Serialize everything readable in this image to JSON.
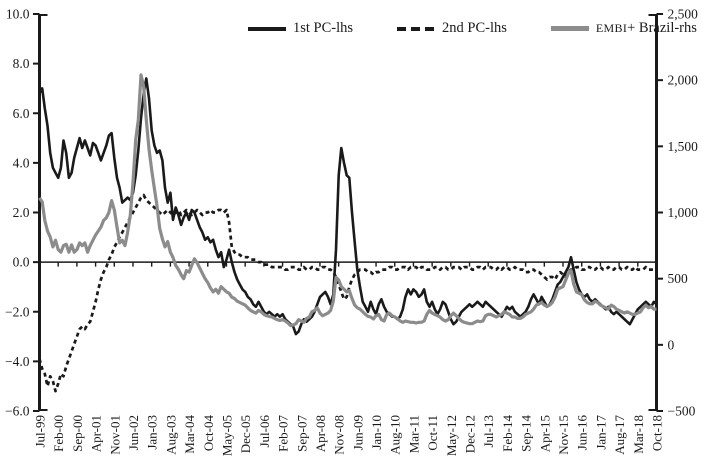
{
  "chart_data": {
    "type": "line",
    "title": "",
    "x_axis": {
      "frequency": "monthly",
      "first_month": "Jul-99",
      "last_month": "Oct-18",
      "label_every_n_months": 7,
      "tick_labels": [
        "Jul-99",
        "Feb-00",
        "Sep-00",
        "Apr-01",
        "Nov-01",
        "Jun-02",
        "Jan-03",
        "Aug-03",
        "Mar-04",
        "Oct-04",
        "May-05",
        "Dec-05",
        "Jul-06",
        "Feb-07",
        "Sep-07",
        "Apr-08",
        "Nov-08",
        "Jun-09",
        "Jan-10",
        "Aug-10",
        "Mar-11",
        "Oct-11",
        "May-12",
        "Dec-12",
        "Jul-13",
        "Feb-14",
        "Sep-14",
        "Apr-15",
        "Nov-15",
        "Jun-16",
        "Jan-17",
        "Aug-17",
        "Mar-18",
        "Oct-18"
      ]
    },
    "y_axis_left": {
      "min": -6,
      "max": 10,
      "tick_labels": [
        "10.0",
        "8.0",
        "6.0",
        "4.0",
        "2.0",
        "0.0",
        "−2.0",
        "−4.0",
        "−6.0"
      ]
    },
    "y_axis_right": {
      "min": -500,
      "max": 2500,
      "tick_labels": [
        "2,500",
        "2,000",
        "1,500",
        "1,000",
        "500",
        "0",
        "−500"
      ]
    },
    "zero_line": true,
    "grid": false,
    "legend_position": "top-center",
    "series": [
      {
        "name": "1st PC-lhs",
        "axis": "left",
        "style": "solid",
        "color": "#1a1a1a",
        "width": 2.6,
        "values": [
          6.8,
          7.0,
          6.2,
          5.5,
          4.4,
          3.8,
          3.6,
          3.4,
          3.8,
          4.9,
          4.4,
          3.4,
          3.6,
          4.2,
          4.6,
          5.0,
          4.6,
          4.9,
          4.6,
          4.3,
          4.8,
          4.7,
          4.4,
          4.1,
          4.4,
          4.7,
          5.1,
          5.2,
          4.2,
          3.4,
          3.0,
          2.4,
          2.5,
          2.6,
          2.5,
          2.8,
          3.5,
          4.5,
          5.8,
          6.8,
          7.4,
          6.6,
          5.3,
          4.7,
          4.4,
          4.5,
          4.1,
          3.0,
          2.4,
          2.8,
          1.7,
          2.2,
          1.9,
          1.5,
          1.8,
          2.0,
          1.7,
          2.1,
          2.0,
          1.7,
          1.4,
          1.2,
          0.9,
          1.0,
          0.8,
          0.9,
          0.5,
          0.2,
          0.4,
          -0.2,
          0.1,
          0.5,
          0.0,
          -0.4,
          -0.7,
          -0.9,
          -1.1,
          -1.2,
          -1.4,
          -1.5,
          -1.7,
          -1.8,
          -1.6,
          -1.8,
          -2.0,
          -2.1,
          -2.0,
          -2.1,
          -2.2,
          -2.1,
          -2.2,
          -2.1,
          -2.3,
          -2.4,
          -2.5,
          -2.6,
          -2.9,
          -2.8,
          -2.5,
          -2.3,
          -2.4,
          -2.3,
          -2.2,
          -2.0,
          -1.7,
          -1.4,
          -1.3,
          -1.2,
          -1.4,
          -1.7,
          -1.3,
          0.5,
          3.5,
          4.6,
          4.0,
          3.5,
          3.4,
          2.0,
          0.8,
          -0.3,
          -1.0,
          -1.6,
          -1.8,
          -2.0,
          -1.6,
          -1.9,
          -2.1,
          -1.7,
          -1.5,
          -1.8,
          -2.0,
          -2.1,
          -2.2,
          -2.2,
          -2.3,
          -2.2,
          -1.9,
          -1.4,
          -1.1,
          -1.3,
          -1.1,
          -1.2,
          -1.4,
          -1.3,
          -1.1,
          -1.6,
          -1.8,
          -1.6,
          -1.9,
          -2.1,
          -1.9,
          -1.6,
          -1.7,
          -2.0,
          -2.3,
          -2.5,
          -2.4,
          -2.2,
          -2.0,
          -1.9,
          -1.8,
          -1.7,
          -1.8,
          -1.7,
          -1.6,
          -1.7,
          -1.8,
          -1.6,
          -1.7,
          -1.8,
          -1.9,
          -2.0,
          -2.1,
          -2.2,
          -2.0,
          -1.8,
          -1.9,
          -1.8,
          -2.0,
          -2.1,
          -2.2,
          -2.1,
          -2.0,
          -1.8,
          -1.5,
          -1.3,
          -1.5,
          -1.7,
          -1.4,
          -1.6,
          -1.8,
          -1.7,
          -1.5,
          -1.2,
          -0.9,
          -0.8,
          -0.6,
          -0.4,
          -0.2,
          0.2,
          -0.3,
          -0.8,
          -1.1,
          -1.3,
          -1.4,
          -1.3,
          -1.5,
          -1.6,
          -1.5,
          -1.6,
          -1.7,
          -1.8,
          -1.9,
          -1.8,
          -2.0,
          -2.1,
          -2.0,
          -2.1,
          -2.2,
          -2.3,
          -2.4,
          -2.5,
          -2.3,
          -2.1,
          -1.9,
          -1.8,
          -1.7,
          -1.6,
          -1.7,
          -1.8,
          -1.6,
          -1.7
        ]
      },
      {
        "name": "2nd PC-lhs",
        "axis": "left",
        "style": "dashed",
        "color": "#1a1a1a",
        "width": 2.7,
        "values": [
          -3.9,
          -4.3,
          -4.5,
          -5.0,
          -4.6,
          -4.8,
          -5.2,
          -4.9,
          -4.5,
          -4.6,
          -4.2,
          -3.9,
          -3.6,
          -3.3,
          -3.0,
          -2.7,
          -2.6,
          -2.7,
          -2.5,
          -2.4,
          -2.0,
          -1.6,
          -1.1,
          -0.7,
          -0.4,
          -0.2,
          0.1,
          0.3,
          0.6,
          0.8,
          1.0,
          1.2,
          1.4,
          1.6,
          1.8,
          2.0,
          2.2,
          2.4,
          2.6,
          2.7,
          2.5,
          2.4,
          2.3,
          2.2,
          2.1,
          2.0,
          1.9,
          2.0,
          2.1,
          2.0,
          1.9,
          2.0,
          2.1,
          1.9,
          2.0,
          2.1,
          2.0,
          1.9,
          2.0,
          2.1,
          2.0,
          1.9,
          2.0,
          2.0,
          2.1,
          2.0,
          2.0,
          2.1,
          2.1,
          2.0,
          2.1,
          1.6,
          0.6,
          0.4,
          0.3,
          0.3,
          0.2,
          0.2,
          0.2,
          0.1,
          0.1,
          0.1,
          0.0,
          0.0,
          -0.1,
          -0.1,
          -0.1,
          -0.2,
          -0.2,
          -0.2,
          -0.2,
          -0.2,
          -0.3,
          -0.3,
          -0.2,
          -0.2,
          -0.2,
          -0.3,
          -0.3,
          -0.2,
          -0.3,
          -0.3,
          -0.2,
          -0.2,
          -0.3,
          -0.3,
          -0.2,
          -0.2,
          -0.3,
          -0.3,
          -0.4,
          -0.6,
          -0.9,
          -1.2,
          -1.5,
          -1.4,
          -1.0,
          -0.7,
          -0.5,
          -0.4,
          -0.3,
          -0.3,
          -0.3,
          -0.4,
          -0.4,
          -0.5,
          -0.4,
          -0.4,
          -0.3,
          -0.3,
          -0.3,
          -0.2,
          -0.2,
          -0.3,
          -0.3,
          -0.2,
          -0.2,
          -0.2,
          -0.3,
          -0.2,
          -0.2,
          -0.2,
          -0.3,
          -0.2,
          -0.2,
          -0.3,
          -0.3,
          -0.3,
          -0.2,
          -0.2,
          -0.3,
          -0.2,
          -0.2,
          -0.3,
          -0.3,
          -0.2,
          -0.2,
          -0.2,
          -0.3,
          -0.2,
          -0.2,
          -0.2,
          -0.3,
          -0.3,
          -0.2,
          -0.2,
          -0.3,
          -0.2,
          -0.2,
          -0.2,
          -0.3,
          -0.3,
          -0.2,
          -0.3,
          -0.2,
          -0.2,
          -0.3,
          -0.3,
          -0.2,
          -0.3,
          -0.3,
          -0.3,
          -0.4,
          -0.4,
          -0.3,
          -0.3,
          -0.4,
          -0.4,
          -0.5,
          -0.6,
          -0.7,
          -0.6,
          -0.6,
          -0.7,
          -0.5,
          -0.4,
          -0.5,
          -0.6,
          -0.4,
          -0.3,
          -0.3,
          -0.2,
          -0.2,
          -0.3,
          -0.3,
          -0.2,
          -0.2,
          -0.3,
          -0.3,
          -0.2,
          -0.2,
          -0.3,
          -0.3,
          -0.2,
          -0.3,
          -0.3,
          -0.2,
          -0.2,
          -0.3,
          -0.3,
          -0.2,
          -0.3,
          -0.3,
          -0.2,
          -0.3,
          -0.3,
          -0.3,
          -0.2,
          -0.3,
          -0.3,
          -0.3,
          -0.3
        ]
      },
      {
        "name": "EMBI+ Brazil-rhs",
        "axis": "right",
        "style": "solid",
        "color": "#8c8c8c",
        "width": 3.2,
        "values": [
          1110,
          1080,
          940,
          860,
          815,
          740,
          790,
          720,
          700,
          750,
          760,
          700,
          755,
          700,
          720,
          770,
          750,
          770,
          700,
          750,
          790,
          830,
          860,
          890,
          940,
          960,
          1000,
          1090,
          1020,
          890,
          770,
          790,
          750,
          850,
          980,
          1230,
          1550,
          1700,
          2040,
          1950,
          1700,
          1480,
          1320,
          1180,
          1050,
          880,
          800,
          740,
          780,
          700,
          660,
          600,
          570,
          530,
          500,
          560,
          550,
          600,
          650,
          620,
          580,
          540,
          500,
          470,
          430,
          400,
          420,
          390,
          440,
          420,
          400,
          390,
          360,
          350,
          330,
          320,
          310,
          300,
          280,
          260,
          250,
          240,
          260,
          250,
          230,
          220,
          215,
          210,
          200,
          190,
          185,
          190,
          180,
          165,
          145,
          150,
          160,
          190,
          180,
          170,
          200,
          210,
          250,
          260,
          280,
          240,
          220,
          230,
          240,
          260,
          330,
          510,
          490,
          440,
          420,
          400,
          410,
          350,
          300,
          280,
          270,
          250,
          230,
          215,
          210,
          195,
          220,
          230,
          190,
          180,
          230,
          240,
          220,
          210,
          200,
          180,
          170,
          180,
          175,
          170,
          170,
          165,
          170,
          170,
          180,
          230,
          260,
          240,
          230,
          220,
          210,
          190,
          180,
          190,
          220,
          240,
          220,
          200,
          180,
          170,
          165,
          160,
          160,
          170,
          180,
          175,
          180,
          220,
          230,
          230,
          220,
          210,
          220,
          230,
          250,
          240,
          230,
          210,
          210,
          200,
          200,
          210,
          230,
          240,
          250,
          270,
          300,
          310,
          320,
          300,
          290,
          300,
          320,
          360,
          420,
          430,
          440,
          490,
          540,
          560,
          460,
          400,
          390,
          380,
          340,
          320,
          310,
          310,
          330,
          320,
          300,
          290,
          280,
          270,
          300,
          290,
          270,
          260,
          250,
          240,
          250,
          240,
          230,
          230,
          240,
          250,
          280,
          300,
          280,
          290,
          270,
          270
        ]
      }
    ]
  }
}
